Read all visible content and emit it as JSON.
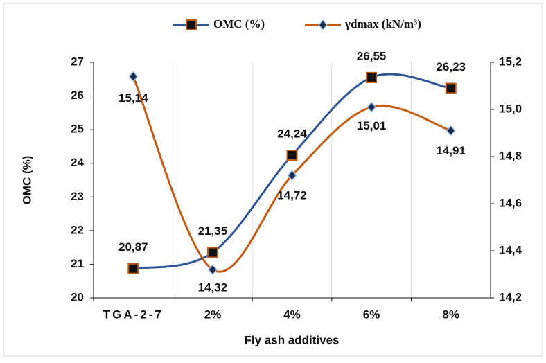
{
  "chart_data": {
    "type": "line",
    "xlabel": "Fly ash additives",
    "ylabel": "OMC (%)",
    "categories": [
      "TGA-2-7",
      "2%",
      "4%",
      "6%",
      "8%"
    ],
    "series": [
      {
        "name": "OMC (%)",
        "color": "#2f5597",
        "marker_color": "#111111",
        "marker_edge": "#c55a11",
        "marker": "square",
        "values": [
          20.87,
          21.35,
          24.24,
          26.55,
          26.23
        ],
        "value_labels": [
          "20,87",
          "21,35",
          "24,24",
          "26,55",
          "26,23"
        ]
      },
      {
        "name": "γdmax (kN/m³)",
        "color": "#c55a11",
        "marker_color": "#1f2d4f",
        "marker_edge": "#9dc3e6",
        "marker": "diamond",
        "axis": "y2",
        "values": [
          15.14,
          14.32,
          14.72,
          15.01,
          14.91
        ],
        "value_labels": [
          "15,14",
          "14,32",
          "14,72",
          "15,01",
          "14,91"
        ]
      }
    ],
    "ylim": [
      20,
      27
    ],
    "yticks": [
      20,
      21,
      22,
      23,
      24,
      25,
      26,
      27
    ],
    "y2lim": [
      14.2,
      15.2
    ],
    "y2ticks": [
      {
        "value": 14.2,
        "label": "14,2"
      },
      {
        "value": 14.4,
        "label": "14,4"
      },
      {
        "value": 14.6,
        "label": "14,6"
      },
      {
        "value": 14.8,
        "label": "14,8"
      },
      {
        "value": 15.0,
        "label": "15,0"
      },
      {
        "value": 15.2,
        "label": "15,2"
      }
    ],
    "grid": "x",
    "legend": "top",
    "smooth": true
  }
}
